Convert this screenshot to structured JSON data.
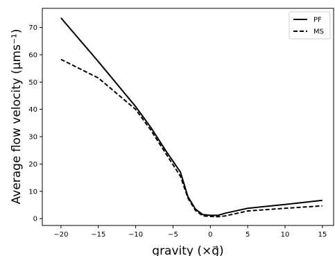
{
  "chart_data": {
    "type": "line",
    "title": "",
    "xlabel": "gravity (×g⃗)",
    "ylabel": "Average flow velocity (μms⁻¹)",
    "xlim": [
      -22.5,
      16.5
    ],
    "ylim": [
      -2.5,
      77
    ],
    "xticks": [
      -20,
      -15,
      -10,
      -5,
      0,
      5,
      10,
      15
    ],
    "xtick_labels": [
      "−20",
      "−15",
      "−10",
      "−5",
      "0",
      "5",
      "10",
      "15"
    ],
    "yticks": [
      0,
      10,
      20,
      30,
      40,
      50,
      60,
      70
    ],
    "ytick_labels": [
      "0",
      "10",
      "20",
      "30",
      "40",
      "50",
      "60",
      "70"
    ],
    "grid": false,
    "legend_position": "top-right",
    "series": [
      {
        "name": "PF",
        "style": "solid",
        "color": "#000000",
        "x": [
          -20,
          -15,
          -10,
          -8,
          -6,
          -4,
          -3,
          -2,
          -1,
          0,
          1,
          2,
          5,
          10,
          15
        ],
        "y": [
          73.5,
          57.5,
          41,
          33.5,
          25,
          17,
          8,
          3.5,
          1.5,
          1.2,
          1.2,
          2,
          3.8,
          5.2,
          6.7
        ]
      },
      {
        "name": "MS",
        "style": "dashed",
        "color": "#000000",
        "x": [
          -20,
          -15,
          -10,
          -8,
          -6,
          -4,
          -3,
          -2,
          -1,
          0,
          1,
          2,
          5,
          10,
          15
        ],
        "y": [
          58.3,
          51.5,
          40,
          32.5,
          24,
          15.5,
          7.5,
          3,
          1,
          0.8,
          0.7,
          1,
          2.8,
          3.8,
          4.7
        ]
      }
    ]
  }
}
